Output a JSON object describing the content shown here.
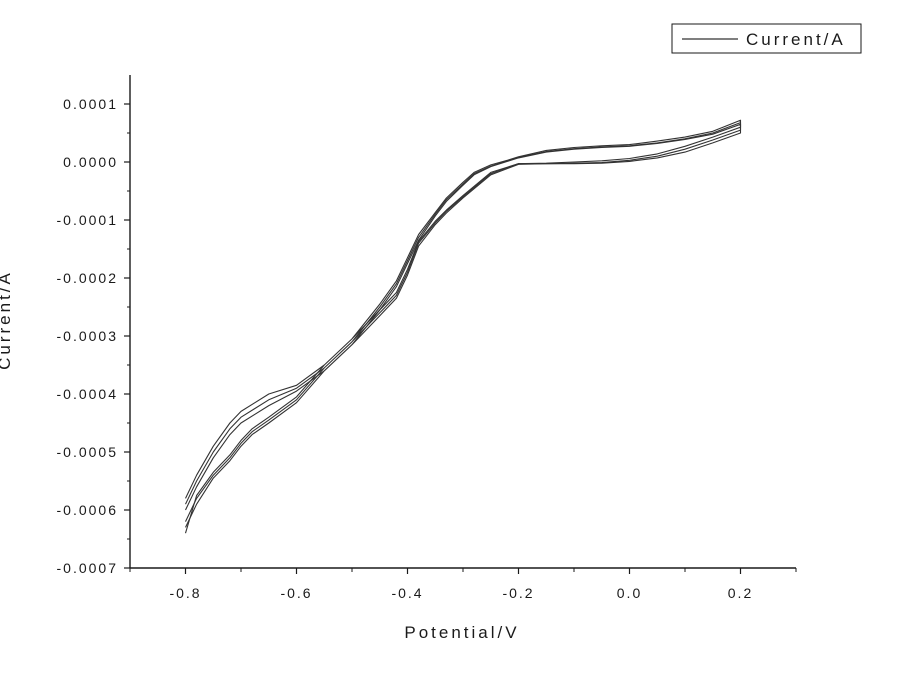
{
  "chart_data": {
    "type": "line",
    "title": "",
    "xlabel": "Potential/V",
    "ylabel": "Current/A",
    "xlim": [
      -0.9,
      0.3
    ],
    "ylim": [
      -0.0007,
      0.00015
    ],
    "x_ticks": [
      -0.8,
      -0.6,
      -0.4,
      -0.2,
      0.0,
      0.2
    ],
    "x_tick_labels": [
      "-0.8",
      "-0.6",
      "-0.4",
      "-0.2",
      "0.0",
      "0.2"
    ],
    "y_ticks": [
      0.0001,
      0.0,
      -0.0001,
      -0.0002,
      -0.0003,
      -0.0004,
      -0.0005,
      -0.0006,
      -0.0007
    ],
    "y_tick_labels": [
      "0.0001",
      "0.0000",
      "-0.0001",
      "-0.0002",
      "-0.0003",
      "-0.0004",
      "-0.0005",
      "-0.0006",
      "-0.0007"
    ],
    "grid": false,
    "legend": {
      "position": "top-right",
      "entries": [
        "Current/A"
      ]
    },
    "color": "#333333",
    "series": [
      {
        "name": "Current/A",
        "cycles": [
          {
            "x": [
              -0.8,
              -0.78,
              -0.75,
              -0.72,
              -0.7,
              -0.65,
              -0.6,
              -0.55,
              -0.5,
              -0.45,
              -0.42,
              -0.4,
              -0.38,
              -0.35,
              -0.33,
              -0.3,
              -0.28,
              -0.25,
              -0.22,
              -0.2,
              -0.15,
              -0.1,
              -0.05,
              0.0,
              0.05,
              0.1,
              0.15,
              0.2,
              0.2,
              0.15,
              0.1,
              0.05,
              0.0,
              -0.05,
              -0.1,
              -0.15,
              -0.2,
              -0.25,
              -0.3,
              -0.33,
              -0.35,
              -0.38,
              -0.4,
              -0.42,
              -0.45,
              -0.5,
              -0.55,
              -0.6,
              -0.65,
              -0.68,
              -0.7,
              -0.72,
              -0.75,
              -0.78,
              -0.8
            ],
            "y": [
              -0.00059,
              -0.00055,
              -0.0005,
              -0.00046,
              -0.00044,
              -0.00041,
              -0.00039,
              -0.000355,
              -0.00031,
              -0.00025,
              -0.00021,
              -0.00017,
              -0.00013,
              -9e-05,
              -6.5e-05,
              -3.8e-05,
              -2e-05,
              -7e-06,
              2e-06,
              8e-06,
              1.8e-05,
              2.3e-05,
              2.6e-05,
              2.8e-05,
              3.3e-05,
              4e-05,
              5e-05,
              6.8e-05,
              5e-05,
              3.3e-05,
              1.7e-05,
              7e-06,
              1e-06,
              -2e-06,
              -3e-06,
              -3e-06,
              -3e-06,
              -2e-05,
              -6e-05,
              -8.5e-05,
              -0.000105,
              -0.00014,
              -0.00019,
              -0.00023,
              -0.00026,
              -0.00031,
              -0.000355,
              -0.00041,
              -0.000445,
              -0.000465,
              -0.000485,
              -0.00051,
              -0.00054,
              -0.00058,
              -0.00062
            ]
          },
          {
            "x": [
              -0.8,
              -0.78,
              -0.75,
              -0.72,
              -0.7,
              -0.65,
              -0.6,
              -0.55,
              -0.5,
              -0.45,
              -0.42,
              -0.4,
              -0.38,
              -0.35,
              -0.33,
              -0.3,
              -0.28,
              -0.25,
              -0.22,
              -0.2,
              -0.15,
              -0.1,
              -0.05,
              0.0,
              0.05,
              0.1,
              0.15,
              0.2,
              0.2,
              0.15,
              0.1,
              0.05,
              0.0,
              -0.05,
              -0.1,
              -0.15,
              -0.2,
              -0.25,
              -0.3,
              -0.33,
              -0.35,
              -0.38,
              -0.4,
              -0.42,
              -0.45,
              -0.5,
              -0.55,
              -0.6,
              -0.65,
              -0.68,
              -0.7,
              -0.72,
              -0.75,
              -0.78,
              -0.8
            ],
            "y": [
              -0.0006,
              -0.00056,
              -0.00051,
              -0.00047,
              -0.00045,
              -0.00042,
              -0.000395,
              -0.00036,
              -0.000315,
              -0.000255,
              -0.000215,
              -0.000175,
              -0.000135,
              -9.3e-05,
              -6.8e-05,
              -4e-05,
              -2.2e-05,
              -8e-06,
              1e-06,
              7e-06,
              1.7e-05,
              2.2e-05,
              2.5e-05,
              2.7e-05,
              3.2e-05,
              3.9e-05,
              4.8e-05,
              6.5e-05,
              5.5e-05,
              3.8e-05,
              2.2e-05,
              1e-05,
              3e-06,
              -1e-06,
              -2e-06,
              -3e-06,
              -4e-06,
              -2.2e-05,
              -6.2e-05,
              -8.8e-05,
              -0.000108,
              -0.000145,
              -0.000195,
              -0.000235,
              -0.000265,
              -0.000315,
              -0.00036,
              -0.000415,
              -0.00045,
              -0.00047,
              -0.00049,
              -0.000515,
              -0.000545,
              -0.00059,
              -0.00063
            ]
          },
          {
            "x": [
              -0.8,
              -0.78,
              -0.75,
              -0.72,
              -0.7,
              -0.65,
              -0.6,
              -0.55,
              -0.5,
              -0.45,
              -0.42,
              -0.4,
              -0.38,
              -0.35,
              -0.33,
              -0.3,
              -0.28,
              -0.25,
              -0.22,
              -0.2,
              -0.15,
              -0.1,
              -0.05,
              0.0,
              0.05,
              0.1,
              0.15,
              0.2,
              0.2,
              0.15,
              0.1,
              0.05,
              0.0,
              -0.05,
              -0.1,
              -0.15,
              -0.2,
              -0.25,
              -0.3,
              -0.33,
              -0.35,
              -0.38,
              -0.4,
              -0.42,
              -0.45,
              -0.5,
              -0.55,
              -0.6,
              -0.65,
              -0.68,
              -0.7,
              -0.72,
              -0.75,
              -0.78,
              -0.8
            ],
            "y": [
              -0.00058,
              -0.00054,
              -0.00049,
              -0.00045,
              -0.00043,
              -0.0004,
              -0.000385,
              -0.00035,
              -0.000305,
              -0.000245,
              -0.000205,
              -0.000165,
              -0.000125,
              -8.7e-05,
              -6.2e-05,
              -3.5e-05,
              -1.8e-05,
              -5e-06,
              3e-06,
              9e-06,
              2e-05,
              2.5e-05,
              2.8e-05,
              3e-05,
              3.6e-05,
              4.3e-05,
              5.3e-05,
              7.2e-05,
              6e-05,
              4.3e-05,
              2.7e-05,
              1.4e-05,
              6e-06,
              2e-06,
              0.0,
              -2e-06,
              -3e-06,
              -1.8e-05,
              -5.8e-05,
              -8.3e-05,
              -0.000102,
              -0.000137,
              -0.000185,
              -0.000225,
              -0.000255,
              -0.000305,
              -0.00035,
              -0.000405,
              -0.00044,
              -0.00046,
              -0.00048,
              -0.000505,
              -0.000535,
              -0.000575,
              -0.00064
            ]
          }
        ]
      }
    ]
  }
}
